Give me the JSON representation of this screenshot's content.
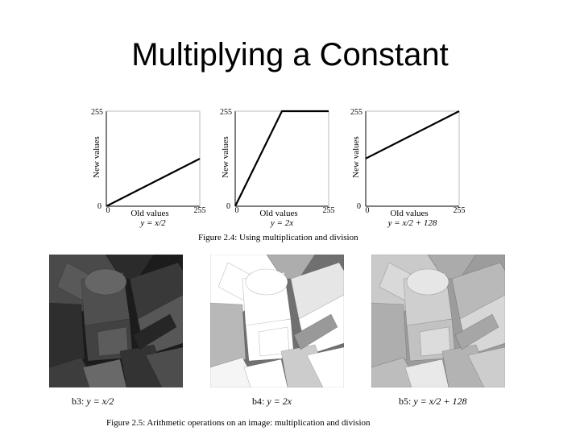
{
  "slide": {
    "title": "Multiplying a Constant"
  },
  "chart_data": [
    {
      "type": "line",
      "caption": "y = x/2",
      "xlabel": "Old values",
      "ylabel": "New values",
      "xlim": [
        0,
        255
      ],
      "ylim": [
        0,
        255
      ],
      "xticks": [
        "0",
        "255"
      ],
      "yticks": [
        "0",
        "255"
      ],
      "x": [
        0,
        255
      ],
      "y": [
        0,
        127.5
      ]
    },
    {
      "type": "line",
      "caption": "y = 2x",
      "xlabel": "Old values",
      "ylabel": "New values",
      "xlim": [
        0,
        255
      ],
      "ylim": [
        0,
        255
      ],
      "xticks": [
        "0",
        "255"
      ],
      "yticks": [
        "0",
        "255"
      ],
      "x": [
        0,
        127.5,
        255
      ],
      "y": [
        0,
        255,
        255
      ]
    },
    {
      "type": "line",
      "caption": "y = x/2 + 128",
      "xlabel": "Old values",
      "ylabel": "New values",
      "xlim": [
        0,
        255
      ],
      "ylim": [
        0,
        255
      ],
      "xticks": [
        "0",
        "255"
      ],
      "yticks": [
        "0",
        "255"
      ],
      "x": [
        0,
        255
      ],
      "y": [
        128,
        255.5
      ]
    }
  ],
  "figure_2_4": {
    "caption": "Figure 2.4: Using multiplication and division"
  },
  "images": [
    {
      "label": "b3:",
      "equation": "y = x/2",
      "brightness": 0.5
    },
    {
      "label": "b4:",
      "equation": "y = 2x",
      "brightness": 2.0
    },
    {
      "label": "b5:",
      "equation": "y = x/2 + 128",
      "brightness": 0.5,
      "offset": 128
    }
  ],
  "figure_2_5": {
    "caption": "Figure 2.5: Arithmetic operations on an image: multiplication and division"
  }
}
